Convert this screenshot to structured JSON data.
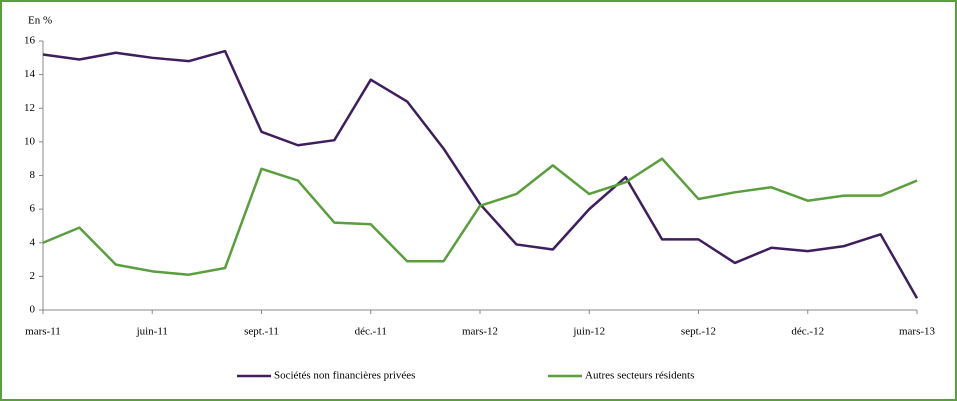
{
  "chart_data": {
    "type": "line",
    "y_label": "En %",
    "categories": [
      "mars-11",
      null,
      null,
      "juin-11",
      null,
      null,
      "sept.-11",
      null,
      null,
      "déc.-11",
      null,
      null,
      "mars-12",
      null,
      null,
      "juin-12",
      null,
      null,
      "sept.-12",
      null,
      null,
      "déc.-12",
      null,
      null,
      "mars-13"
    ],
    "series": [
      {
        "name": "Sociétés non financières privées",
        "color": "#3f1e5e",
        "values": [
          15.2,
          14.9,
          15.3,
          15.0,
          14.8,
          15.4,
          10.6,
          9.8,
          10.1,
          13.7,
          12.4,
          9.6,
          6.3,
          3.9,
          3.6,
          6.0,
          7.9,
          4.2,
          4.2,
          2.8,
          3.7,
          3.5,
          3.8,
          4.5,
          0.7
        ]
      },
      {
        "name": "Autres secteurs résidents",
        "color": "#5a9e3e",
        "values": [
          4.0,
          4.9,
          2.7,
          2.3,
          2.1,
          2.5,
          8.4,
          7.7,
          5.2,
          5.1,
          2.9,
          2.9,
          6.2,
          6.9,
          8.6,
          6.9,
          7.6,
          9.0,
          6.6,
          7.0,
          7.3,
          6.5,
          6.8,
          6.8,
          7.7
        ]
      }
    ],
    "ylim": [
      0,
      16
    ],
    "yticks": [
      0,
      2,
      4,
      6,
      8,
      10,
      12,
      14,
      16
    ],
    "legend": "bottom"
  }
}
